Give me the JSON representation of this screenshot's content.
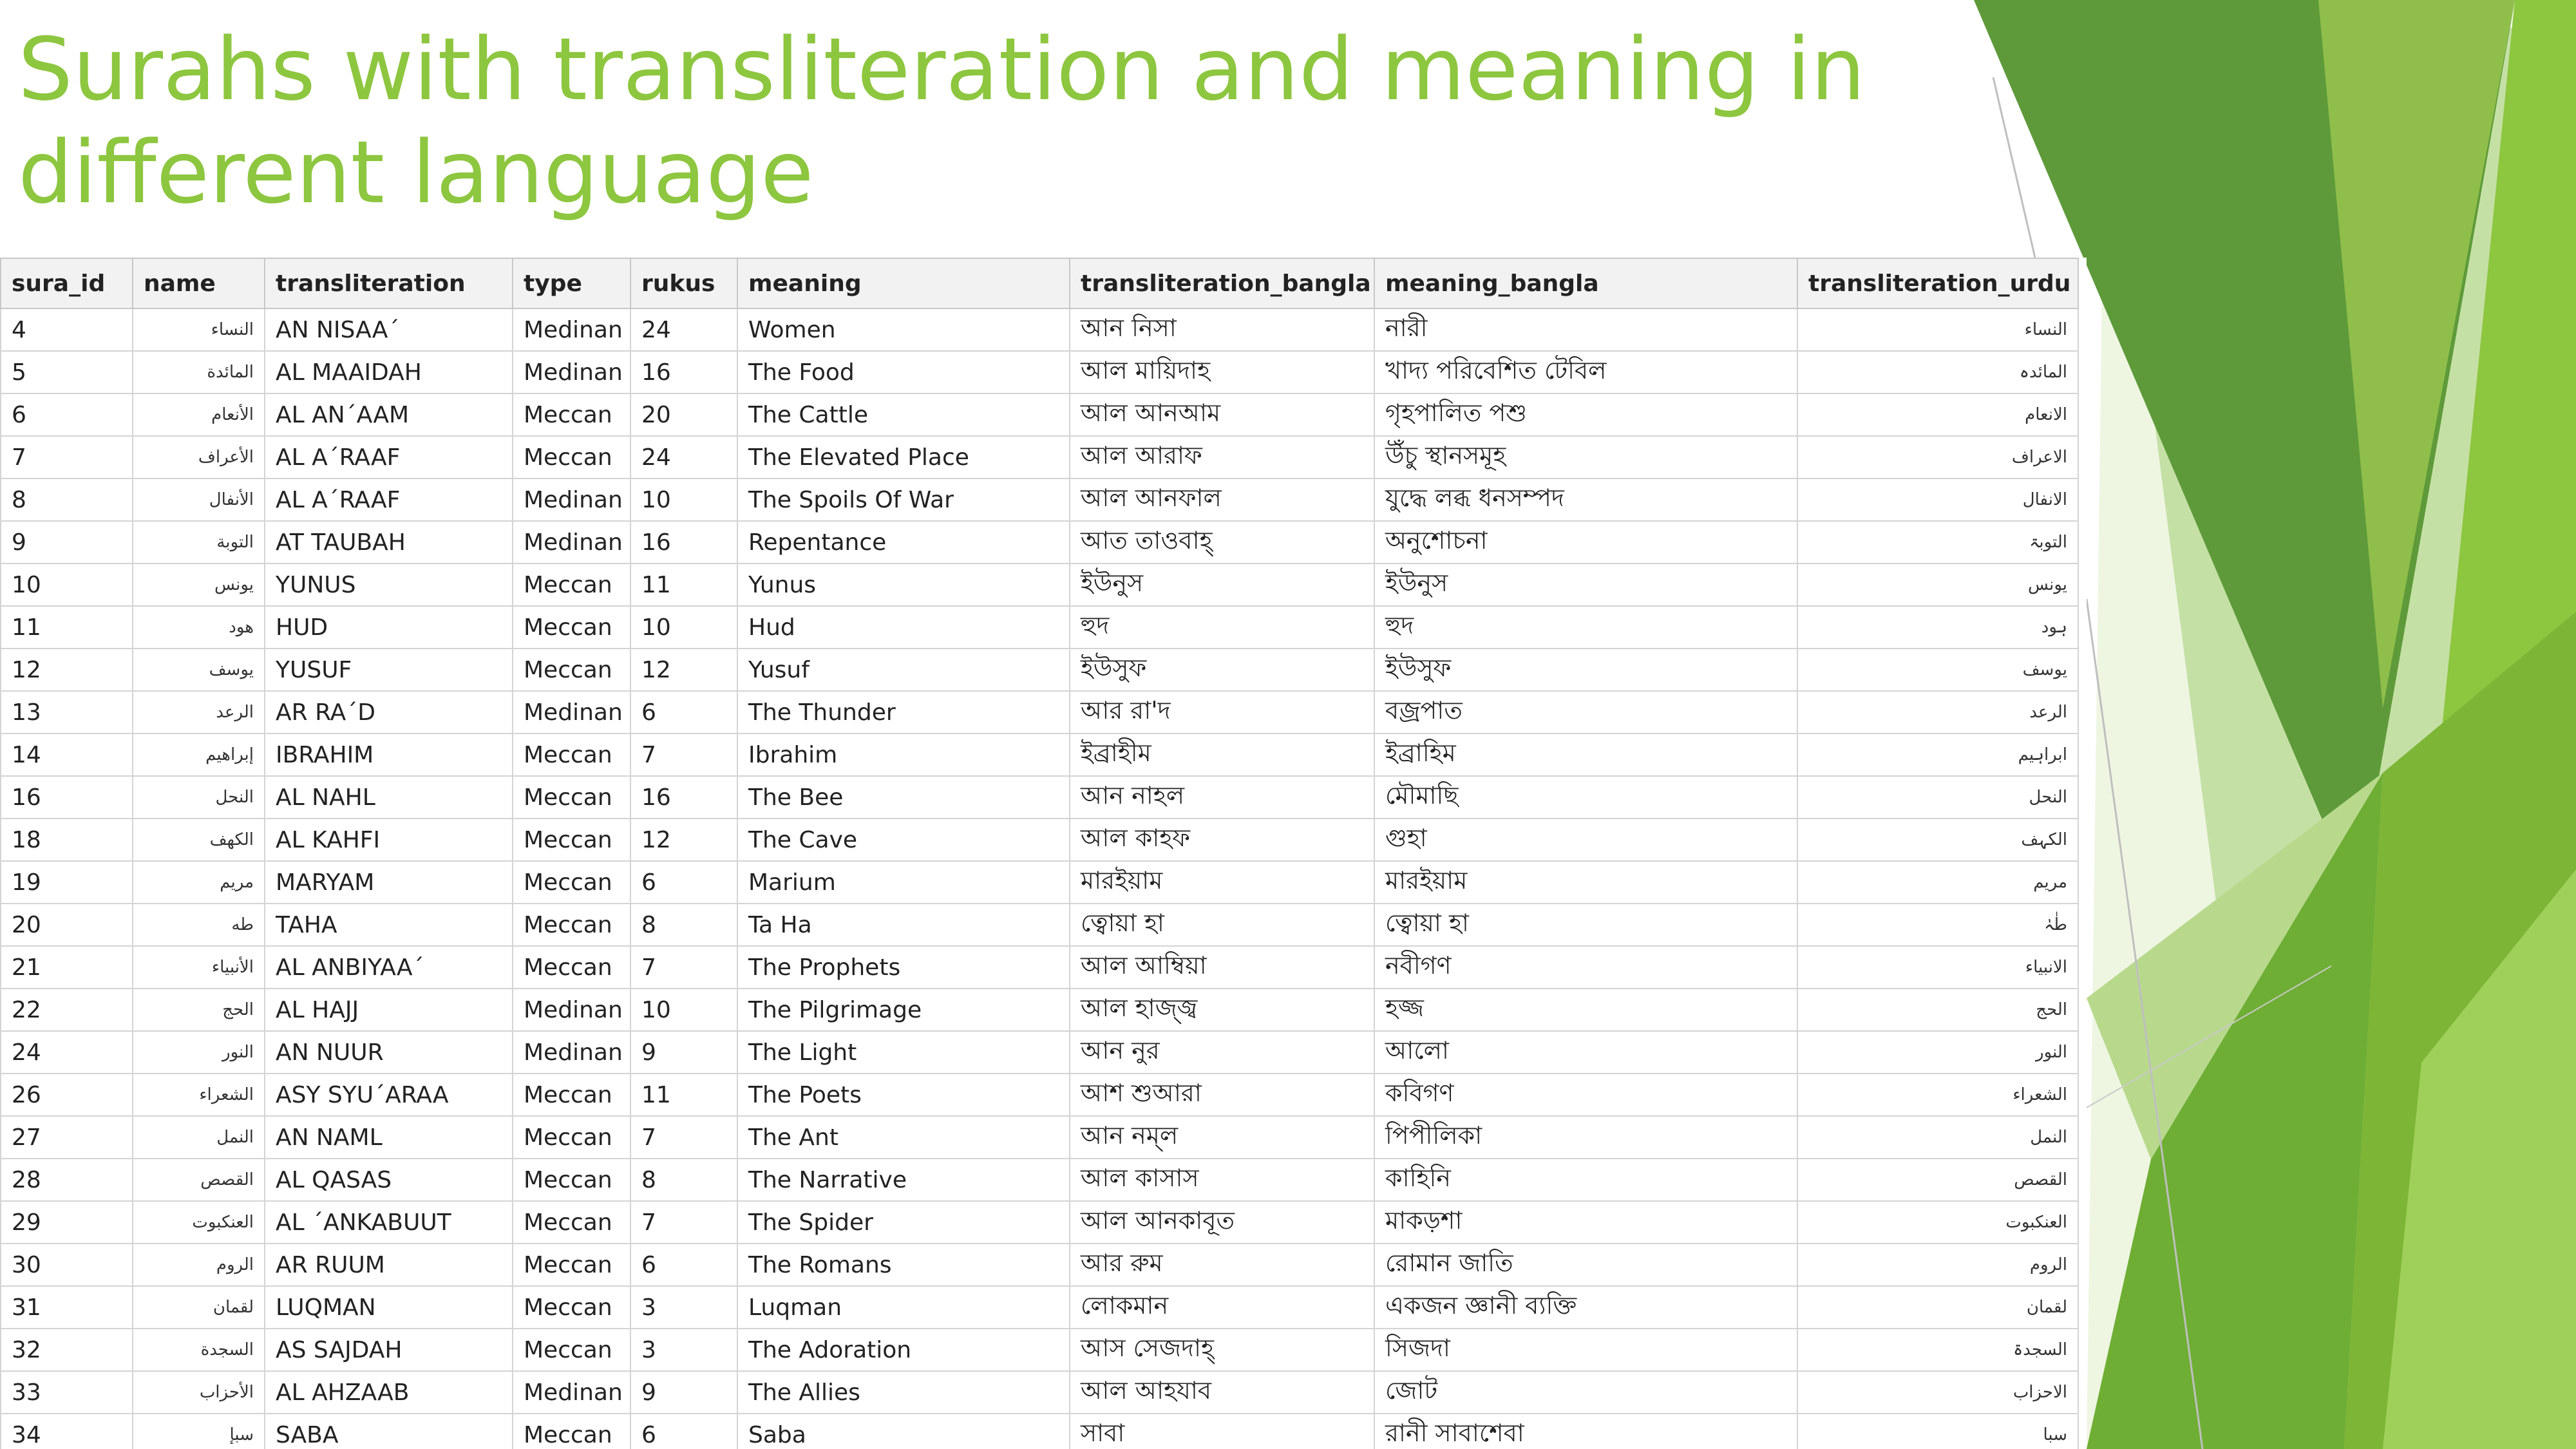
{
  "title": "Surahs with transliteration and meaning in different language",
  "colors": {
    "title": "#8dc63f",
    "accent_light": "#c5e0a5",
    "accent_mid": "#8dc63f",
    "accent_dark": "#4f8a2a"
  },
  "table": {
    "headers": [
      "sura_id",
      "name",
      "transliteration",
      "type",
      "rukus",
      "meaning",
      "transliteration_bangla",
      "meaning_bangla",
      "transliteration_urdu"
    ],
    "rows": [
      [
        "4",
        "النساء",
        "AN NISAA´",
        "Medinan",
        "24",
        "Women",
        "আন নিসা",
        "নারী",
        "النساء"
      ],
      [
        "5",
        "المائدة",
        "AL MAAIDAH",
        "Medinan",
        "16",
        "The Food",
        "আল মায়িদাহ",
        "খাদ্য পরিবেশিত টেবিল",
        "المائدہ"
      ],
      [
        "6",
        "الأنعام",
        "AL AN´AAM",
        "Meccan",
        "20",
        "The Cattle",
        "আল আনআম",
        "গৃহপালিত পশু",
        "الانعام"
      ],
      [
        "7",
        "الأعراف",
        "AL A´RAAF",
        "Meccan",
        "24",
        "The Elevated Place",
        "আল আরাফ",
        "উঁচু স্থানসমূহ",
        "الاعراف"
      ],
      [
        "8",
        "الأنفال",
        "AL A´RAAF",
        "Medinan",
        "10",
        "The Spoils Of War",
        "আল আনফাল",
        "যুদ্ধে লব্ধ ধনসম্পদ",
        "الانفال"
      ],
      [
        "9",
        "التوبة",
        "AT TAUBAH",
        "Medinan",
        "16",
        "Repentance",
        "আত তাওবাহ্",
        "অনুশোচনা",
        "التوبۃ"
      ],
      [
        "10",
        "يونس",
        "YUNUS",
        "Meccan",
        "11",
        "Yunus",
        "ইউনুস",
        "ইউনুস",
        "یونس"
      ],
      [
        "11",
        "هود",
        "HUD",
        "Meccan",
        "10",
        "Hud",
        "হুদ",
        "হুদ",
        "ہود"
      ],
      [
        "12",
        "يوسف",
        "YUSUF",
        "Meccan",
        "12",
        "Yusuf",
        "ইউসুফ",
        "ইউসুফ",
        "یوسف"
      ],
      [
        "13",
        "الرعد",
        "AR RA´D",
        "Medinan",
        "6",
        "The Thunder",
        "আর রা'দ",
        "বজ্রপাত",
        "الرعد"
      ],
      [
        "14",
        "إبراهيم",
        "IBRAHIM",
        "Meccan",
        "7",
        "Ibrahim",
        "ইব্রাহীম",
        "ইব্রাহিম",
        "ابراہیم"
      ],
      [
        "16",
        "النحل",
        "AL NAHL",
        "Meccan",
        "16",
        "The Bee",
        "আন নাহল",
        "মৌমাছি",
        "النحل"
      ],
      [
        "18",
        "الكهف",
        "AL KAHFI",
        "Meccan",
        "12",
        "The Cave",
        "আল কাহফ",
        "গুহা",
        "الکہف"
      ],
      [
        "19",
        "مريم",
        "MARYAM",
        "Meccan",
        "6",
        "Marium",
        "মারইয়াম",
        "মারইয়াম",
        "مریم"
      ],
      [
        "20",
        "طه",
        "TAHA",
        "Meccan",
        "8",
        "Ta Ha",
        "ত্বোয়া হা",
        "ত্বোয়া হা",
        "طٰہٰ"
      ],
      [
        "21",
        "الأنبياء",
        "AL ANBIYAA´",
        "Meccan",
        "7",
        "The Prophets",
        "আল আম্বিয়া",
        "নবীগণ",
        "الانبیاء"
      ],
      [
        "22",
        "الحج",
        "AL HAJJ",
        "Medinan",
        "10",
        "The Pilgrimage",
        "আল হাজ্জ্ব",
        "হজ্জ",
        "الحج"
      ],
      [
        "24",
        "النور",
        "AN NUUR",
        "Medinan",
        "9",
        "The Light",
        "আন নুর",
        "আলো",
        "النور"
      ],
      [
        "26",
        "الشعراء",
        "ASY SYU´ARAA",
        "Meccan",
        "11",
        "The Poets",
        "আশ শুআরা",
        "কবিগণ",
        "الشعراء"
      ],
      [
        "27",
        "النمل",
        "AN NAML",
        "Meccan",
        "7",
        "The Ant",
        "আন নম্‌ল",
        "পিপীলিকা",
        "النمل"
      ],
      [
        "28",
        "القصص",
        "AL QASAS",
        "Meccan",
        "8",
        "The Narrative",
        "আল কাসাস",
        "কাহিনি",
        "القصص"
      ],
      [
        "29",
        "العنكبوت",
        "AL ´ANKABUUT",
        "Meccan",
        "7",
        "The Spider",
        "আল আনকাবূত",
        "মাকড়শা",
        "العنکبوت"
      ],
      [
        "30",
        "الروم",
        "AR RUUM",
        "Meccan",
        "6",
        "The Romans",
        "আর রুম",
        "রোমান জাতি",
        "الروم"
      ],
      [
        "31",
        "لقمان",
        "LUQMAN",
        "Meccan",
        "3",
        "Luqman",
        "লোকমান",
        "একজন জ্ঞানী ব্যক্তি",
        "لقمان"
      ],
      [
        "32",
        "السجدة",
        "AS SAJDAH",
        "Meccan",
        "3",
        "The Adoration",
        "আস সেজদাহ্",
        "সিজদা",
        "السجدۃ"
      ],
      [
        "33",
        "الأحزاب",
        "AL AHZAAB",
        "Medinan",
        "9",
        "The Allies",
        "আল আহযাব",
        "জোট",
        "الاحزاب"
      ],
      [
        "34",
        "سبإ",
        "SABA",
        "Meccan",
        "6",
        "Saba",
        "সাবা",
        "রানী সাবাশেবা",
        "سبا"
      ]
    ]
  }
}
